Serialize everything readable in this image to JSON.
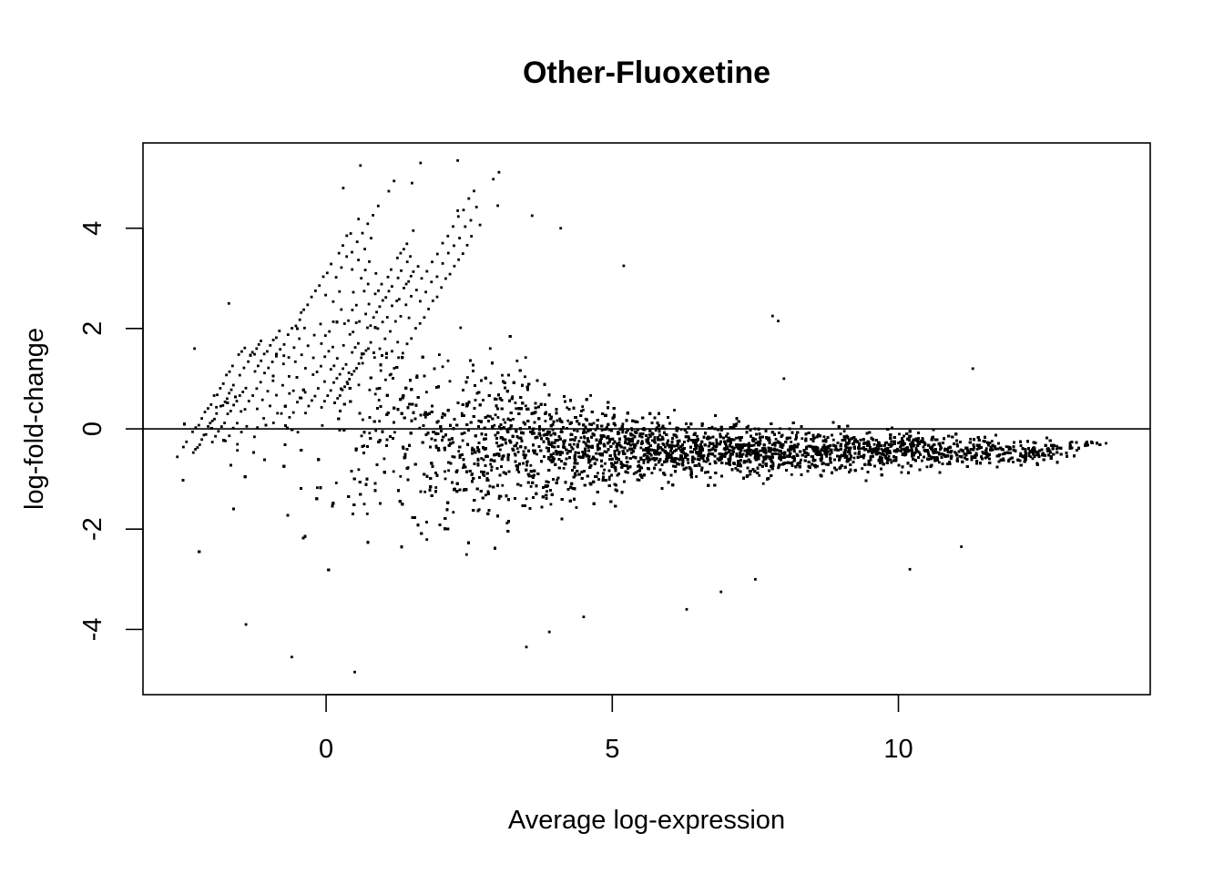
{
  "chart_data": {
    "type": "scatter",
    "title": "Other-Fluoxetine",
    "xlabel": "Average log-expression",
    "ylabel": "log-fold-change",
    "xlim": [
      -3.2,
      14.4
    ],
    "ylim": [
      -5.3,
      5.7
    ],
    "x_ticks": [
      0,
      5,
      10
    ],
    "y_ticks": [
      -4,
      -2,
      0,
      2,
      4
    ],
    "reference_line_y": 0,
    "grid": false,
    "legend": "none",
    "point_color": "#000000",
    "approx_point_count": 16000,
    "density_profile": [
      {
        "x": -2.5,
        "center": 0.0,
        "spread": 1.5,
        "density": 0.03
      },
      {
        "x": -1.5,
        "center": 0.1,
        "spread": 1.6,
        "density": 0.06
      },
      {
        "x": -0.5,
        "center": 0.0,
        "spread": 1.6,
        "density": 0.12
      },
      {
        "x": 0.5,
        "center": 0.0,
        "spread": 1.5,
        "density": 0.25
      },
      {
        "x": 1.5,
        "center": -0.2,
        "spread": 1.3,
        "density": 0.45
      },
      {
        "x": 2.5,
        "center": -0.3,
        "spread": 1.1,
        "density": 0.7
      },
      {
        "x": 3.5,
        "center": -0.35,
        "spread": 0.9,
        "density": 0.9
      },
      {
        "x": 4.5,
        "center": -0.4,
        "spread": 0.55,
        "density": 1.0
      },
      {
        "x": 6.0,
        "center": -0.45,
        "spread": 0.38,
        "density": 1.0
      },
      {
        "x": 8.0,
        "center": -0.45,
        "spread": 0.3,
        "density": 0.95
      },
      {
        "x": 10.0,
        "center": -0.45,
        "spread": 0.25,
        "density": 0.8
      },
      {
        "x": 12.0,
        "center": -0.5,
        "spread": 0.18,
        "density": 0.5
      },
      {
        "x": 13.0,
        "center": -0.4,
        "spread": 0.12,
        "density": 0.2
      },
      {
        "x": 13.7,
        "center": -0.25,
        "spread": 0.06,
        "density": 0.05
      }
    ],
    "notable_points": [
      {
        "x": 0.6,
        "y": 5.25
      },
      {
        "x": 1.65,
        "y": 5.3
      },
      {
        "x": 2.3,
        "y": 5.35
      },
      {
        "x": 1.5,
        "y": 4.9
      },
      {
        "x": 0.3,
        "y": 4.8
      },
      {
        "x": 2.3,
        "y": 4.35
      },
      {
        "x": 3.0,
        "y": 4.45
      },
      {
        "x": 4.1,
        "y": 4.0
      },
      {
        "x": 3.6,
        "y": 4.25
      },
      {
        "x": 5.2,
        "y": 3.25
      },
      {
        "x": 7.8,
        "y": 2.25
      },
      {
        "x": 7.9,
        "y": 2.15
      },
      {
        "x": 11.3,
        "y": 1.2
      },
      {
        "x": 8.0,
        "y": 1.0
      },
      {
        "x": -1.7,
        "y": 2.5
      },
      {
        "x": -2.3,
        "y": 1.6
      },
      {
        "x": -1.4,
        "y": -3.9
      },
      {
        "x": -0.6,
        "y": -4.55
      },
      {
        "x": 0.5,
        "y": -4.85
      },
      {
        "x": 3.5,
        "y": -4.35
      },
      {
        "x": 3.9,
        "y": -4.05
      },
      {
        "x": 4.5,
        "y": -3.75
      },
      {
        "x": 6.3,
        "y": -3.6
      },
      {
        "x": 10.2,
        "y": -2.8
      },
      {
        "x": 11.1,
        "y": -2.35
      },
      {
        "x": 7.5,
        "y": -3.0
      },
      {
        "x": 6.9,
        "y": -3.25
      }
    ]
  }
}
